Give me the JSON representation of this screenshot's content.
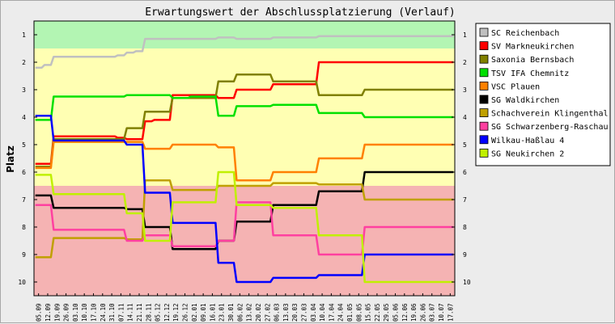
{
  "chart_data": {
    "type": "line",
    "title": "Erwartungswert der Abschlussplatzierung (Verlauf)",
    "ylabel": "Platz",
    "xlabel": "",
    "ylim": [
      0.5,
      10.5
    ],
    "y_inverted": true,
    "y_ticks": [
      "1",
      "2",
      "3",
      "4",
      "5",
      "6",
      "7",
      "8",
      "9",
      "10"
    ],
    "y_ticks_right": true,
    "grid": false,
    "legend_position": "right",
    "background_zones": [
      {
        "from": 0.5,
        "to": 1.5,
        "color": "#b3f5b3"
      },
      {
        "from": 1.5,
        "to": 6.5,
        "color": "#ffffb3"
      },
      {
        "from": 6.5,
        "to": 10.5,
        "color": "#f5b3b3"
      }
    ],
    "categories": [
      "05.09",
      "12.09",
      "19.09",
      "26.09",
      "03.10",
      "10.10",
      "17.10",
      "24.10",
      "31.10",
      "07.11",
      "14.11",
      "21.11",
      "28.11",
      "05.12",
      "12.12",
      "19.12",
      "26.12",
      "02.01",
      "09.01",
      "16.01",
      "23.01",
      "30.01",
      "06.02",
      "13.02",
      "20.02",
      "27.02",
      "06.03",
      "13.03",
      "20.03",
      "27.03",
      "03.04",
      "10.04",
      "17.04",
      "24.04",
      "01.05",
      "08.05",
      "15.05",
      "22.05",
      "29.05",
      "05.06",
      "12.06",
      "19.06",
      "26.06",
      "03.07",
      "10.07",
      "17.07"
    ],
    "series": [
      {
        "name": "SC Reichenbach",
        "color": "#c0c0c0",
        "values": [
          2.2,
          2.1,
          1.8,
          1.8,
          1.8,
          1.8,
          1.8,
          1.8,
          1.8,
          1.75,
          1.65,
          1.6,
          1.15,
          1.15,
          1.15,
          1.15,
          1.15,
          1.15,
          1.15,
          1.15,
          1.1,
          1.1,
          1.15,
          1.15,
          1.15,
          1.15,
          1.1,
          1.1,
          1.1,
          1.1,
          1.1,
          1.05,
          1.05,
          1.05,
          1.05,
          1.05,
          1.05,
          1.05,
          1.05,
          1.05,
          1.05,
          1.05,
          1.05,
          1.05,
          1.05,
          1.05
        ]
      },
      {
        "name": "SV Markneukirchen",
        "color": "#ff0000",
        "values": [
          5.7,
          5.7,
          4.7,
          4.7,
          4.7,
          4.7,
          4.7,
          4.7,
          4.7,
          4.75,
          4.8,
          4.8,
          4.15,
          4.1,
          4.1,
          3.2,
          3.2,
          3.2,
          3.2,
          3.2,
          3.3,
          3.3,
          3.0,
          3.0,
          3.0,
          3.0,
          2.8,
          2.8,
          2.8,
          2.8,
          2.8,
          2.0,
          2.0,
          2.0,
          2.0,
          2.0,
          2.0,
          2.0,
          2.0,
          2.0,
          2.0,
          2.0,
          2.0,
          2.0,
          2.0,
          2.0
        ]
      },
      {
        "name": "Saxonia Bernsbach",
        "color": "#808000",
        "values": [
          5.8,
          5.8,
          4.8,
          4.8,
          4.8,
          4.8,
          4.8,
          4.8,
          4.8,
          4.8,
          4.4,
          4.4,
          3.8,
          3.8,
          3.8,
          3.3,
          3.3,
          3.3,
          3.3,
          3.3,
          2.7,
          2.7,
          2.45,
          2.45,
          2.45,
          2.45,
          2.7,
          2.7,
          2.7,
          2.7,
          2.7,
          3.2,
          3.2,
          3.2,
          3.2,
          3.2,
          3.0,
          3.0,
          3.0,
          3.0,
          3.0,
          3.0,
          3.0,
          3.0,
          3.0,
          3.0
        ]
      },
      {
        "name": "TSV IFA Chemnitz",
        "color": "#00e000",
        "values": [
          4.1,
          4.1,
          3.25,
          3.25,
          3.25,
          3.25,
          3.25,
          3.25,
          3.25,
          3.25,
          3.2,
          3.2,
          3.2,
          3.2,
          3.2,
          3.3,
          3.3,
          3.25,
          3.25,
          3.25,
          3.95,
          3.95,
          3.6,
          3.6,
          3.6,
          3.6,
          3.55,
          3.55,
          3.55,
          3.55,
          3.55,
          3.85,
          3.85,
          3.85,
          3.85,
          3.85,
          4.0,
          4.0,
          4.0,
          4.0,
          4.0,
          4.0,
          4.0,
          4.0,
          4.0,
          4.0
        ]
      },
      {
        "name": "VSC Plauen",
        "color": "#ff8000",
        "values": [
          5.85,
          5.85,
          4.9,
          4.9,
          4.9,
          4.9,
          4.9,
          4.9,
          4.9,
          4.9,
          4.9,
          4.9,
          5.15,
          5.15,
          5.15,
          5.0,
          5.0,
          5.0,
          5.0,
          5.0,
          5.1,
          5.1,
          6.3,
          6.3,
          6.3,
          6.3,
          6.0,
          6.0,
          6.0,
          6.0,
          6.0,
          5.5,
          5.5,
          5.5,
          5.5,
          5.5,
          5.0,
          5.0,
          5.0,
          5.0,
          5.0,
          5.0,
          5.0,
          5.0,
          5.0,
          5.0
        ]
      },
      {
        "name": "SG Waldkirchen",
        "color": "#000000",
        "values": [
          6.85,
          6.85,
          7.3,
          7.3,
          7.3,
          7.3,
          7.3,
          7.3,
          7.3,
          7.3,
          7.35,
          7.35,
          8.0,
          8.0,
          8.0,
          8.8,
          8.8,
          8.8,
          8.8,
          8.8,
          8.5,
          8.5,
          7.8,
          7.8,
          7.8,
          7.8,
          7.2,
          7.2,
          7.2,
          7.2,
          7.2,
          6.7,
          6.7,
          6.7,
          6.7,
          6.7,
          6.0,
          6.0,
          6.0,
          6.0,
          6.0,
          6.0,
          6.0,
          6.0,
          6.0,
          6.0
        ]
      },
      {
        "name": "Schachverein Klingenthal",
        "color": "#c0a000",
        "values": [
          9.1,
          9.1,
          8.4,
          8.4,
          8.4,
          8.4,
          8.4,
          8.4,
          8.4,
          8.4,
          8.45,
          8.45,
          6.3,
          6.3,
          6.3,
          6.65,
          6.65,
          6.65,
          6.65,
          6.65,
          6.5,
          6.5,
          6.5,
          6.5,
          6.5,
          6.5,
          6.4,
          6.4,
          6.4,
          6.4,
          6.4,
          6.45,
          6.45,
          6.45,
          6.45,
          6.45,
          7.0,
          7.0,
          7.0,
          7.0,
          7.0,
          7.0,
          7.0,
          7.0,
          7.0,
          7.0
        ]
      },
      {
        "name": "SG Schwarzenberg-Raschau",
        "color": "#ff40a0",
        "values": [
          7.2,
          7.2,
          8.1,
          8.1,
          8.1,
          8.1,
          8.1,
          8.1,
          8.1,
          8.1,
          8.5,
          8.5,
          8.3,
          8.3,
          8.3,
          8.7,
          8.7,
          8.7,
          8.7,
          8.7,
          8.5,
          8.5,
          7.1,
          7.1,
          7.1,
          7.1,
          8.3,
          8.3,
          8.3,
          8.3,
          8.3,
          9.0,
          9.0,
          9.0,
          9.0,
          9.0,
          8.0,
          8.0,
          8.0,
          8.0,
          8.0,
          8.0,
          8.0,
          8.0,
          8.0,
          8.0
        ]
      },
      {
        "name": "Wilkau-Haßlau 4",
        "color": "#0000ff",
        "values": [
          3.95,
          3.95,
          4.85,
          4.85,
          4.85,
          4.85,
          4.85,
          4.85,
          4.85,
          4.85,
          5.0,
          5.0,
          6.75,
          6.75,
          6.75,
          7.85,
          7.85,
          7.85,
          7.85,
          7.85,
          9.3,
          9.3,
          10.0,
          10.0,
          10.0,
          10.0,
          9.85,
          9.85,
          9.85,
          9.85,
          9.85,
          9.75,
          9.75,
          9.75,
          9.75,
          9.75,
          9.0,
          9.0,
          9.0,
          9.0,
          9.0,
          9.0,
          9.0,
          9.0,
          9.0,
          9.0
        ]
      },
      {
        "name": "SG Neukirchen 2",
        "color": "#c0f000",
        "values": [
          6.1,
          6.1,
          6.8,
          6.8,
          6.8,
          6.8,
          6.8,
          6.8,
          6.8,
          6.8,
          7.5,
          7.5,
          8.5,
          8.5,
          8.5,
          7.1,
          7.1,
          7.1,
          7.1,
          7.1,
          6.0,
          6.0,
          7.2,
          7.2,
          7.2,
          7.2,
          7.3,
          7.3,
          7.3,
          7.3,
          7.3,
          8.3,
          8.3,
          8.3,
          8.3,
          8.3,
          10.0,
          10.0,
          10.0,
          10.0,
          10.0,
          10.0,
          10.0,
          10.0,
          10.0,
          10.0
        ]
      }
    ]
  }
}
